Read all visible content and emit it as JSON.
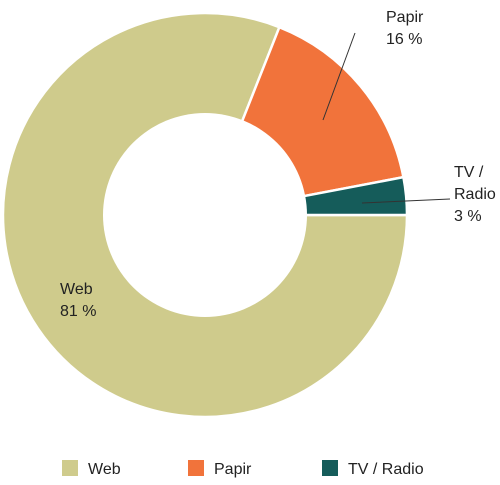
{
  "chart_data": {
    "type": "pie",
    "title": "",
    "donut": true,
    "legend_position": "bottom",
    "slices": [
      {
        "name": "Web",
        "value": 81,
        "value_label": "81 %",
        "label_lines": [
          "Web"
        ],
        "color": "#cfcb8c"
      },
      {
        "name": "Papir",
        "value": 16,
        "value_label": "16 %",
        "label_lines": [
          "Papir"
        ],
        "color": "#f1733b"
      },
      {
        "name": "TV / Radio",
        "value": 3,
        "value_label": "3 %",
        "label_lines": [
          "TV /",
          "Radio"
        ],
        "color": "#155c5a"
      }
    ]
  }
}
